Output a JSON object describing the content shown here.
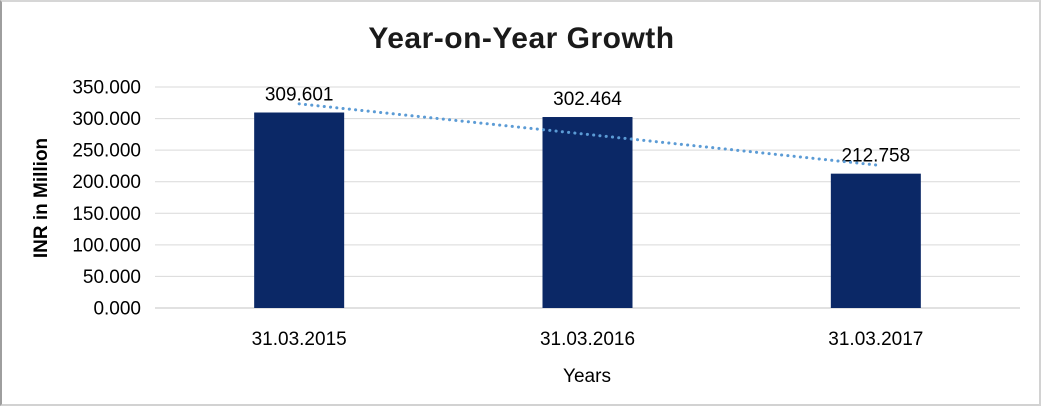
{
  "chart_data": {
    "type": "bar",
    "title": "Year-on-Year Growth",
    "xlabel": "Years",
    "ylabel": "INR in Million",
    "categories": [
      "31.03.2015",
      "31.03.2016",
      "31.03.2017"
    ],
    "values": [
      309.601,
      302.464,
      212.758
    ],
    "value_labels": [
      "309.601",
      "302.464",
      "212.758"
    ],
    "ylim": [
      0,
      350
    ],
    "ytick_step": 50,
    "ytick_labels": [
      "0.000",
      "50.000",
      "100.000",
      "150.000",
      "200.000",
      "250.000",
      "300.000",
      "350.000"
    ],
    "grid": true,
    "legend": "none",
    "trendline": {
      "type": "linear",
      "style": "dotted"
    },
    "colors": {
      "bar": "#0b2866",
      "trendline": "#5b9bd5",
      "gridline": "#d9d9d9",
      "axis_line": "#c3c3c3",
      "label_text": "#000000",
      "title_text": "#1a1a1a"
    }
  }
}
